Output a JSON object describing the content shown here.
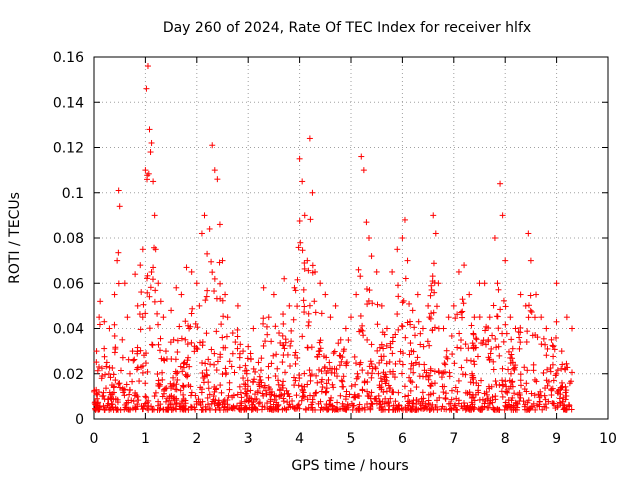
{
  "chart_data": {
    "type": "scatter",
    "title": "Day 260 of 2024, Rate Of TEC Index for receiver hlfx",
    "xlabel": "GPS time / hours",
    "ylabel": "ROTI / TECUs",
    "xlim": [
      0,
      10
    ],
    "ylim": [
      0,
      0.16
    ],
    "xticks": [
      0,
      1,
      2,
      3,
      4,
      5,
      6,
      7,
      8,
      9,
      10
    ],
    "yticks": [
      0,
      0.02,
      0.04,
      0.06,
      0.08,
      0.1,
      0.12,
      0.14,
      0.16
    ],
    "xtick_labels": [
      "0",
      "1",
      "2",
      "3",
      "4",
      "5",
      "6",
      "7",
      "8",
      "9",
      "10"
    ],
    "ytick_labels": [
      "0",
      "0.02",
      "0.04",
      "0.06",
      "0.08",
      "0.1",
      "0.12",
      "0.14",
      "0.16"
    ],
    "grid": true,
    "marker": "plus",
    "color": "#ff0000",
    "series": [
      {
        "name": "ROTI",
        "points": [
          [
            0.0,
            0.012
          ],
          [
            0.05,
            0.03
          ],
          [
            0.1,
            0.045
          ],
          [
            0.12,
            0.052
          ],
          [
            0.15,
            0.018
          ],
          [
            0.2,
            0.043
          ],
          [
            0.25,
            0.025
          ],
          [
            0.3,
            0.04
          ],
          [
            0.35,
            0.015
          ],
          [
            0.4,
            0.055
          ],
          [
            0.45,
            0.07
          ],
          [
            0.48,
            0.101
          ],
          [
            0.5,
            0.094
          ],
          [
            0.55,
            0.035
          ],
          [
            0.6,
            0.06
          ],
          [
            0.65,
            0.045
          ],
          [
            0.7,
            0.02
          ],
          [
            0.75,
            0.03
          ],
          [
            0.8,
            0.064
          ],
          [
            0.85,
            0.05
          ],
          [
            0.9,
            0.068
          ],
          [
            0.95,
            0.075
          ],
          [
            1.0,
            0.11
          ],
          [
            1.02,
            0.146
          ],
          [
            1.05,
            0.156
          ],
          [
            1.08,
            0.128
          ],
          [
            1.1,
            0.118
          ],
          [
            1.12,
            0.122
          ],
          [
            1.15,
            0.105
          ],
          [
            1.18,
            0.09
          ],
          [
            1.2,
            0.075
          ],
          [
            1.25,
            0.06
          ],
          [
            1.3,
            0.052
          ],
          [
            1.35,
            0.045
          ],
          [
            1.4,
            0.03
          ],
          [
            1.5,
            0.048
          ],
          [
            1.55,
            0.035
          ],
          [
            1.6,
            0.058
          ],
          [
            1.7,
            0.055
          ],
          [
            1.8,
            0.067
          ],
          [
            1.85,
            0.04
          ],
          [
            1.9,
            0.065
          ],
          [
            2.0,
            0.06
          ],
          [
            2.05,
            0.05
          ],
          [
            2.1,
            0.082
          ],
          [
            2.15,
            0.09
          ],
          [
            2.2,
            0.073
          ],
          [
            2.25,
            0.084
          ],
          [
            2.3,
            0.121
          ],
          [
            2.35,
            0.11
          ],
          [
            2.4,
            0.106
          ],
          [
            2.45,
            0.086
          ],
          [
            2.5,
            0.07
          ],
          [
            2.55,
            0.055
          ],
          [
            2.6,
            0.045
          ],
          [
            2.7,
            0.038
          ],
          [
            2.8,
            0.05
          ],
          [
            2.9,
            0.03
          ],
          [
            3.0,
            0.032
          ],
          [
            3.1,
            0.04
          ],
          [
            3.2,
            0.025
          ],
          [
            3.3,
            0.058
          ],
          [
            3.4,
            0.045
          ],
          [
            3.5,
            0.055
          ],
          [
            3.6,
            0.038
          ],
          [
            3.7,
            0.062
          ],
          [
            3.8,
            0.05
          ],
          [
            3.9,
            0.058
          ],
          [
            4.0,
            0.115
          ],
          [
            4.05,
            0.105
          ],
          [
            4.1,
            0.09
          ],
          [
            4.15,
            0.07
          ],
          [
            4.2,
            0.124
          ],
          [
            4.25,
            0.1
          ],
          [
            4.3,
            0.065
          ],
          [
            4.4,
            0.06
          ],
          [
            4.5,
            0.055
          ],
          [
            4.6,
            0.045
          ],
          [
            4.7,
            0.05
          ],
          [
            4.8,
            0.035
          ],
          [
            4.9,
            0.04
          ],
          [
            5.0,
            0.045
          ],
          [
            5.1,
            0.055
          ],
          [
            5.2,
            0.116
          ],
          [
            5.25,
            0.11
          ],
          [
            5.3,
            0.087
          ],
          [
            5.35,
            0.08
          ],
          [
            5.4,
            0.072
          ],
          [
            5.5,
            0.065
          ],
          [
            5.6,
            0.05
          ],
          [
            5.7,
            0.04
          ],
          [
            5.8,
            0.065
          ],
          [
            5.9,
            0.075
          ],
          [
            6.0,
            0.08
          ],
          [
            6.05,
            0.088
          ],
          [
            6.1,
            0.07
          ],
          [
            6.2,
            0.048
          ],
          [
            6.3,
            0.055
          ],
          [
            6.4,
            0.04
          ],
          [
            6.5,
            0.05
          ],
          [
            6.6,
            0.09
          ],
          [
            6.65,
            0.082
          ],
          [
            6.7,
            0.06
          ],
          [
            6.8,
            0.04
          ],
          [
            6.9,
            0.045
          ],
          [
            7.0,
            0.05
          ],
          [
            7.1,
            0.065
          ],
          [
            7.2,
            0.068
          ],
          [
            7.3,
            0.055
          ],
          [
            7.4,
            0.045
          ],
          [
            7.5,
            0.06
          ],
          [
            7.6,
            0.06
          ],
          [
            7.7,
            0.045
          ],
          [
            7.8,
            0.08
          ],
          [
            7.85,
            0.06
          ],
          [
            7.9,
            0.104
          ],
          [
            7.95,
            0.09
          ],
          [
            8.0,
            0.07
          ],
          [
            8.1,
            0.045
          ],
          [
            8.2,
            0.04
          ],
          [
            8.3,
            0.055
          ],
          [
            8.4,
            0.05
          ],
          [
            8.45,
            0.082
          ],
          [
            8.5,
            0.07
          ],
          [
            8.6,
            0.055
          ],
          [
            8.7,
            0.045
          ],
          [
            8.8,
            0.04
          ],
          [
            8.9,
            0.035
          ],
          [
            9.0,
            0.06
          ],
          [
            9.1,
            0.03
          ],
          [
            9.2,
            0.045
          ],
          [
            9.3,
            0.04
          ]
        ]
      }
    ]
  }
}
